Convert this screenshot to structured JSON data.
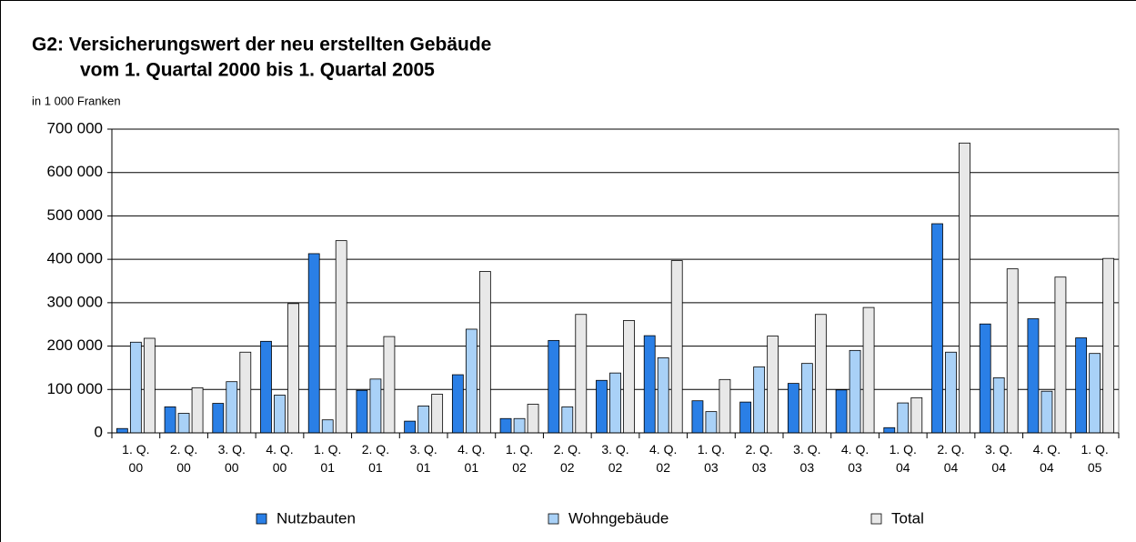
{
  "chart_data": {
    "type": "bar",
    "title": "G2: Versicherungswert der neu erstellten Gebäude",
    "subtitle": "vom 1. Quartal 2000 bis 1. Quartal 2005",
    "y_label": "in 1 000 Franken",
    "categories": [
      "1. Q. 00",
      "2. Q. 00",
      "3. Q. 00",
      "4. Q. 00",
      "1. Q. 01",
      "2. Q. 01",
      "3. Q. 01",
      "4. Q. 01",
      "1. Q. 02",
      "2. Q. 02",
      "3. Q. 02",
      "4. Q. 02",
      "1. Q. 03",
      "2. Q. 03",
      "3. Q. 03",
      "4. Q. 03",
      "1. Q. 04",
      "2. Q. 04",
      "3. Q. 04",
      "4. Q. 04",
      "1. Q. 05"
    ],
    "series": [
      {
        "name": "Nutzbauten",
        "color": "#2a7fe6",
        "values": [
          10000,
          60000,
          68000,
          211000,
          413000,
          98000,
          27000,
          134000,
          33000,
          213000,
          121000,
          224000,
          74000,
          71000,
          114000,
          99000,
          12000,
          482000,
          251000,
          263000,
          219000
        ]
      },
      {
        "name": "Wohngebäude",
        "color": "#a9d1f7",
        "values": [
          209000,
          45000,
          118000,
          87000,
          30000,
          124000,
          62000,
          239000,
          33000,
          60000,
          138000,
          173000,
          49000,
          152000,
          160000,
          190000,
          69000,
          186000,
          127000,
          96000,
          183000
        ]
      },
      {
        "name": "Total",
        "color": "#e8e8e8",
        "values": [
          218000,
          104000,
          186000,
          298000,
          443000,
          222000,
          89000,
          372000,
          66000,
          273000,
          259000,
          397000,
          123000,
          223000,
          273000,
          289000,
          81000,
          668000,
          378000,
          359000,
          402000
        ]
      }
    ],
    "ylim": [
      0,
      700000
    ],
    "yticks": [
      0,
      {
        "value": 100000,
        "label": "100 000"
      },
      {
        "value": 200000,
        "label": "200 000"
      },
      {
        "value": 300000,
        "label": "300 000"
      },
      {
        "value": 400000,
        "label": "400 000"
      },
      {
        "value": 500000,
        "label": "500 000"
      },
      {
        "value": 600000,
        "label": "600 000"
      },
      {
        "value": 700000,
        "label": "700 000"
      }
    ],
    "grid": true
  }
}
